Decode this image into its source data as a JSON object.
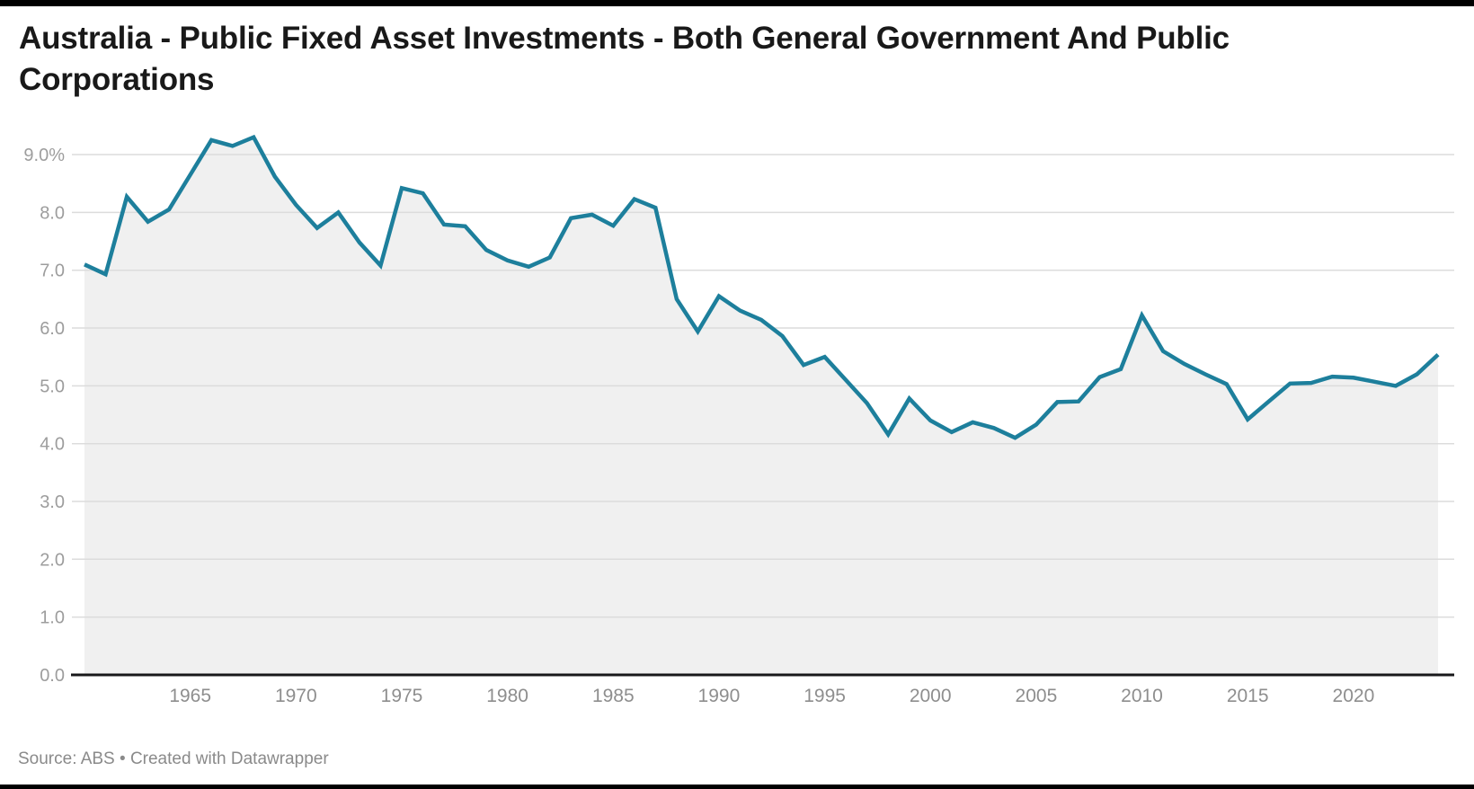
{
  "header": {
    "title": "Australia - Public Fixed Asset Investments - Both General Government And Public Corporations"
  },
  "chart_data": {
    "type": "area",
    "title": "Australia - Public Fixed Asset Investments - Both General Government And Public Corporations",
    "xlabel": "",
    "ylabel": "",
    "unit": "%",
    "ylim": [
      0,
      9.5
    ],
    "grid": true,
    "legend": "none",
    "line_color": "#1d7f9c",
    "fill_color": "#f0f0f0",
    "grid_color": "#dcdcdc",
    "axis_color": "#18181a",
    "ytick_color": "#9d9d9d",
    "xtick_color": "#8e8e8e",
    "x": [
      1960,
      1961,
      1962,
      1963,
      1964,
      1965,
      1966,
      1967,
      1968,
      1969,
      1970,
      1971,
      1972,
      1973,
      1974,
      1975,
      1976,
      1977,
      1978,
      1979,
      1980,
      1981,
      1982,
      1983,
      1984,
      1985,
      1986,
      1987,
      1988,
      1989,
      1990,
      1991,
      1992,
      1993,
      1994,
      1995,
      1996,
      1997,
      1998,
      1999,
      2000,
      2001,
      2002,
      2003,
      2004,
      2005,
      2006,
      2007,
      2008,
      2009,
      2010,
      2011,
      2012,
      2013,
      2014,
      2015,
      2016,
      2017,
      2018,
      2019,
      2020,
      2021,
      2022,
      2023,
      2024
    ],
    "values": [
      7.1,
      6.93,
      8.27,
      7.84,
      8.05,
      8.65,
      9.25,
      9.15,
      9.3,
      8.62,
      8.13,
      7.73,
      8.0,
      7.48,
      7.08,
      8.42,
      8.33,
      7.79,
      7.76,
      7.35,
      7.17,
      7.06,
      7.22,
      7.9,
      7.96,
      7.77,
      8.23,
      8.08,
      6.5,
      5.94,
      6.55,
      6.3,
      6.14,
      5.86,
      5.36,
      5.5,
      5.1,
      4.7,
      4.16,
      4.78,
      4.4,
      4.2,
      4.37,
      4.27,
      4.1,
      4.33,
      4.72,
      4.73,
      5.15,
      5.29,
      6.22,
      5.6,
      5.38,
      5.2,
      5.03,
      4.42,
      4.73,
      5.04,
      5.05,
      5.16,
      5.14,
      5.07,
      5.0,
      5.2,
      5.54
    ],
    "yticks": [
      {
        "v": 0,
        "label": "0.0"
      },
      {
        "v": 1,
        "label": "1.0"
      },
      {
        "v": 2,
        "label": "2.0"
      },
      {
        "v": 3,
        "label": "3.0"
      },
      {
        "v": 4,
        "label": "4.0"
      },
      {
        "v": 5,
        "label": "5.0"
      },
      {
        "v": 6,
        "label": "6.0"
      },
      {
        "v": 7,
        "label": "7.0"
      },
      {
        "v": 8,
        "label": "8.0"
      },
      {
        "v": 9,
        "label": "9.0%"
      }
    ],
    "xticks": [
      1965,
      1970,
      1975,
      1980,
      1985,
      1990,
      1995,
      2000,
      2005,
      2010,
      2015,
      2020
    ]
  },
  "footer": {
    "source_text": "Source: ABS • Created with Datawrapper"
  }
}
